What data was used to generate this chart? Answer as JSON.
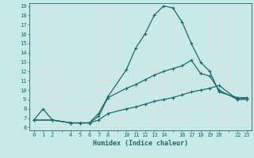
{
  "xlabel": "Humidex (Indice chaleur)",
  "xlim": [
    -0.5,
    23.5
  ],
  "ylim": [
    5.7,
    19.3
  ],
  "yticks": [
    6,
    7,
    8,
    9,
    10,
    11,
    12,
    13,
    14,
    15,
    16,
    17,
    18,
    19
  ],
  "xticks_all": [
    0,
    1,
    2,
    3,
    4,
    5,
    6,
    7,
    8,
    9,
    10,
    11,
    12,
    13,
    14,
    15,
    16,
    17,
    18,
    19,
    20,
    21,
    22,
    23
  ],
  "xtick_labels": [
    "0",
    "1",
    "2",
    "",
    "4",
    "5",
    "6",
    "7",
    "8",
    "",
    "10",
    "11",
    "12",
    "13",
    "14",
    "",
    "16",
    "17",
    "18",
    "19",
    "20",
    "",
    "22",
    "23"
  ],
  "bg_color": "#c8eae6",
  "grid_color": "#dcdcdc",
  "line_color": "#1a6b6b",
  "curve1_x": [
    0,
    1,
    2,
    4,
    5,
    6,
    7,
    8,
    10,
    11,
    12,
    13,
    14,
    15,
    16,
    17,
    18,
    19,
    20,
    22,
    23
  ],
  "curve1_y": [
    6.8,
    8.0,
    6.8,
    6.5,
    6.5,
    6.5,
    7.5,
    9.3,
    12.2,
    14.5,
    16.0,
    18.0,
    19.0,
    18.8,
    17.3,
    15.0,
    13.0,
    12.0,
    9.8,
    9.2,
    9.2
  ],
  "curve2_x": [
    0,
    2,
    4,
    5,
    6,
    7,
    8,
    10,
    11,
    12,
    13,
    14,
    15,
    16,
    17,
    18,
    19,
    20,
    22,
    23
  ],
  "curve2_y": [
    6.8,
    6.8,
    6.5,
    6.5,
    6.5,
    7.2,
    9.2,
    10.2,
    10.6,
    11.1,
    11.6,
    12.0,
    12.3,
    12.6,
    13.2,
    11.8,
    11.5,
    10.0,
    9.0,
    9.0
  ],
  "curve3_x": [
    0,
    2,
    4,
    5,
    6,
    7,
    8,
    10,
    11,
    12,
    13,
    14,
    15,
    16,
    17,
    18,
    19,
    20,
    22,
    23
  ],
  "curve3_y": [
    6.8,
    6.8,
    6.5,
    6.5,
    6.5,
    6.8,
    7.5,
    8.0,
    8.2,
    8.5,
    8.8,
    9.0,
    9.2,
    9.5,
    9.8,
    10.0,
    10.2,
    10.5,
    9.0,
    9.2
  ]
}
